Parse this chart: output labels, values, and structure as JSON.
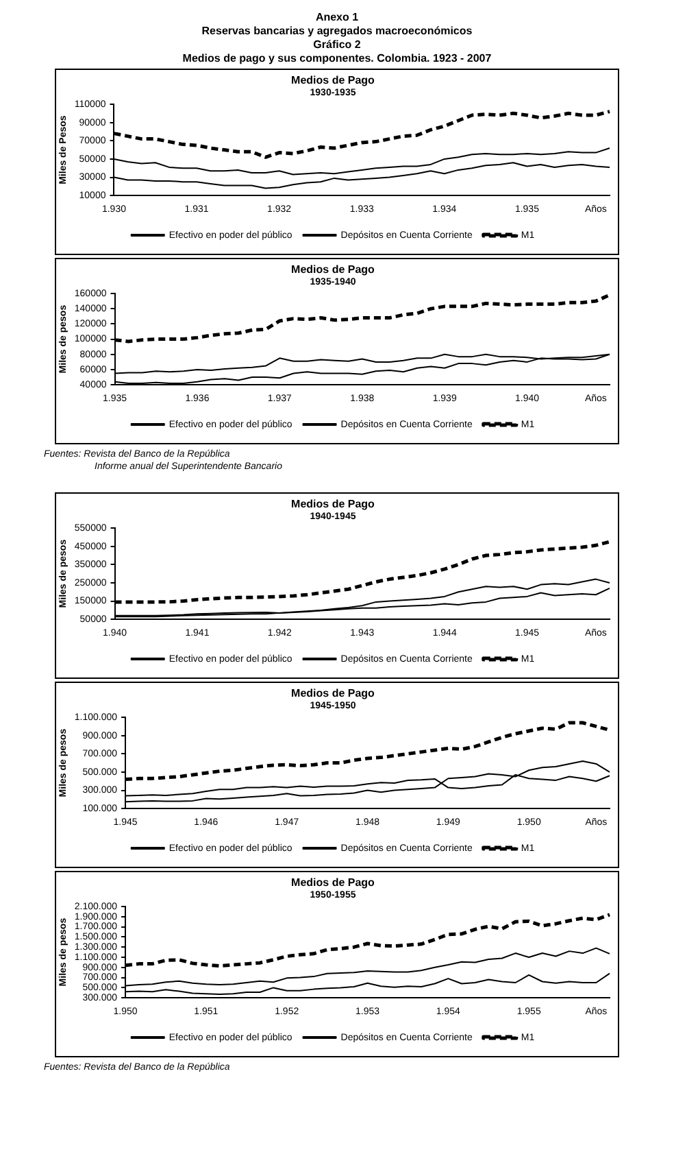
{
  "chart_data": [
    {
      "type": "line",
      "title": "Medios de Pago",
      "subtitle": "1930-1935",
      "ylabel": "Miles de Pesos",
      "legend": "bottom",
      "grid": false,
      "annotations": [
        "Anexo 1",
        "Reservas bancarias y agregados macroeconómicos",
        "Gráfico 2",
        "Medios de pago y sus componentes. Colombia. 1923 - 2007"
      ],
      "categories": [
        "1.930",
        null,
        null,
        null,
        null,
        null,
        "1.931",
        null,
        null,
        null,
        null,
        null,
        "1.932",
        null,
        null,
        null,
        null,
        null,
        "1.933",
        null,
        null,
        null,
        null,
        null,
        "1.934",
        null,
        null,
        null,
        null,
        null,
        "1.935",
        null,
        null,
        null,
        null,
        "Años",
        null
      ],
      "ylim": [
        10000,
        110000
      ],
      "yticks": [
        10000,
        30000,
        50000,
        70000,
        90000,
        110000
      ],
      "series": [
        {
          "name": "Efectivo en poder del público",
          "color": "#000000",
          "values": [
            30000,
            27000,
            27000,
            26000,
            26000,
            25000,
            25000,
            23000,
            21000,
            21000,
            21000,
            18000,
            19000,
            22000,
            24000,
            25000,
            29000,
            27000,
            28000,
            29000,
            30000,
            32000,
            34000,
            37000,
            34000,
            38000,
            40000,
            43000,
            44000,
            46000,
            42000,
            44000,
            41000,
            43000,
            44000,
            42000,
            41000
          ]
        },
        {
          "name": "Depósitos en Cuenta Corriente",
          "color": "#000000",
          "values": [
            50000,
            47000,
            45000,
            46000,
            41000,
            40000,
            40000,
            37000,
            37000,
            38000,
            35000,
            35000,
            37000,
            33000,
            34000,
            35000,
            34000,
            36000,
            38000,
            40000,
            41000,
            42000,
            42000,
            44000,
            50000,
            52000,
            55000,
            56000,
            55000,
            55000,
            56000,
            55000,
            56000,
            58000,
            57000,
            57000,
            62000
          ]
        },
        {
          "name": "M1",
          "color": "#000000",
          "line_style": "dashed",
          "values": [
            78000,
            75000,
            72000,
            72000,
            69000,
            66000,
            65000,
            62000,
            60000,
            58000,
            58000,
            52000,
            57000,
            56000,
            59000,
            63000,
            62000,
            65000,
            68000,
            69000,
            72000,
            75000,
            76000,
            82000,
            86000,
            92000,
            98000,
            99000,
            98000,
            100000,
            98000,
            95000,
            97000,
            100000,
            98000,
            98000,
            102000
          ]
        }
      ]
    },
    {
      "type": "line",
      "title": "Medios de Pago",
      "subtitle": "1935-1940",
      "ylabel": "Miles de pesos",
      "legend": "bottom",
      "grid": false,
      "annotations": [
        "Fuentes:  Revista del Banco de la República",
        "Informe anual del Superintendente Bancario"
      ],
      "categories": [
        "1.935",
        null,
        null,
        null,
        null,
        null,
        "1.936",
        null,
        null,
        null,
        null,
        null,
        "1.937",
        null,
        null,
        null,
        null,
        null,
        "1.938",
        null,
        null,
        null,
        null,
        null,
        "1.939",
        null,
        null,
        null,
        null,
        null,
        "1.940",
        null,
        null,
        null,
        null,
        "Años",
        null
      ],
      "ylim": [
        40000,
        160000
      ],
      "yticks": [
        40000,
        60000,
        80000,
        100000,
        120000,
        140000,
        160000
      ],
      "series": [
        {
          "name": "Efectivo en poder del público",
          "color": "#000000",
          "values": [
            44000,
            42000,
            42000,
            43000,
            42000,
            42000,
            44000,
            47000,
            48000,
            46000,
            50000,
            50000,
            49000,
            55000,
            57000,
            55000,
            55000,
            55000,
            54000,
            58000,
            59000,
            57000,
            62000,
            64000,
            62000,
            68000,
            68000,
            66000,
            70000,
            72000,
            70000,
            75000,
            74000,
            74000,
            73000,
            74000,
            80000
          ]
        },
        {
          "name": "Depósitos en Cuenta Corriente",
          "color": "#000000",
          "values": [
            55000,
            56000,
            56000,
            58000,
            57000,
            58000,
            60000,
            59000,
            61000,
            62000,
            63000,
            65000,
            75000,
            71000,
            71000,
            73000,
            72000,
            71000,
            74000,
            70000,
            70000,
            72000,
            75000,
            75000,
            80000,
            77000,
            77000,
            80000,
            77000,
            77000,
            76000,
            74000,
            75000,
            76000,
            76000,
            78000,
            80000
          ]
        },
        {
          "name": "M1",
          "color": "#000000",
          "line_style": "dashed",
          "values": [
            99000,
            97000,
            99000,
            100000,
            100000,
            100000,
            102000,
            105000,
            107000,
            108000,
            112000,
            113000,
            124000,
            127000,
            126000,
            128000,
            125000,
            126000,
            128000,
            128000,
            128000,
            132000,
            134000,
            140000,
            143000,
            143000,
            143000,
            147000,
            146000,
            145000,
            146000,
            146000,
            146000,
            148000,
            148000,
            150000,
            158000
          ]
        }
      ]
    },
    {
      "type": "line",
      "title": "Medios de Pago",
      "subtitle": "1940-1945",
      "ylabel": "Miles de pesos",
      "legend": "bottom",
      "grid": false,
      "categories": [
        "1.940",
        null,
        null,
        null,
        null,
        null,
        "1.941",
        null,
        null,
        null,
        null,
        null,
        "1.942",
        null,
        null,
        null,
        null,
        null,
        "1.943",
        null,
        null,
        null,
        null,
        null,
        "1.944",
        null,
        null,
        null,
        null,
        null,
        "1.945",
        null,
        null,
        null,
        null,
        "Años",
        null
      ],
      "ylim": [
        50000,
        550000
      ],
      "yticks": [
        50000,
        150000,
        250000,
        350000,
        450000,
        550000
      ],
      "series": [
        {
          "name": "Efectivo en poder del público",
          "color": "#000000",
          "values": [
            65000,
            65000,
            65000,
            65000,
            68000,
            70000,
            72000,
            74000,
            76000,
            78000,
            80000,
            80000,
            85000,
            88000,
            92000,
            98000,
            102000,
            108000,
            112000,
            112000,
            118000,
            122000,
            125000,
            128000,
            135000,
            130000,
            140000,
            145000,
            165000,
            170000,
            175000,
            195000,
            180000,
            185000,
            190000,
            185000,
            220000
          ]
        },
        {
          "name": "Depósitos en Cuenta Corriente",
          "color": "#000000",
          "values": [
            70000,
            70000,
            70000,
            70000,
            72000,
            75000,
            80000,
            82000,
            85000,
            86000,
            87000,
            88000,
            85000,
            90000,
            95000,
            100000,
            108000,
            115000,
            125000,
            145000,
            150000,
            155000,
            160000,
            165000,
            175000,
            200000,
            215000,
            230000,
            225000,
            230000,
            215000,
            240000,
            245000,
            240000,
            255000,
            270000,
            250000
          ]
        },
        {
          "name": "M1",
          "color": "#000000",
          "line_style": "dashed",
          "values": [
            145000,
            145000,
            145000,
            145000,
            146000,
            150000,
            158000,
            163000,
            167000,
            170000,
            170000,
            172000,
            175000,
            178000,
            185000,
            195000,
            205000,
            215000,
            235000,
            255000,
            270000,
            280000,
            290000,
            305000,
            325000,
            350000,
            380000,
            400000,
            405000,
            415000,
            420000,
            430000,
            435000,
            440000,
            445000,
            455000,
            475000
          ]
        }
      ]
    },
    {
      "type": "line",
      "title": "Medios de Pago",
      "subtitle": "1945-1950",
      "ylabel": "Miles de pesos",
      "legend": "bottom",
      "grid": false,
      "categories": [
        "1.945",
        null,
        null,
        null,
        null,
        null,
        "1.946",
        null,
        null,
        null,
        null,
        null,
        "1.947",
        null,
        null,
        null,
        null,
        null,
        "1.948",
        null,
        null,
        null,
        null,
        null,
        "1.949",
        null,
        null,
        null,
        null,
        null,
        "1.950",
        null,
        null,
        null,
        null,
        "Años",
        null
      ],
      "ylim": [
        100000,
        1100000
      ],
      "yticks": [
        {
          "value": 100000,
          "label": "100.000"
        },
        {
          "value": 300000,
          "label": "300.000"
        },
        {
          "value": 500000,
          "label": "500.000"
        },
        {
          "value": 700000,
          "label": "700.000"
        },
        {
          "value": 900000,
          "label": "900.000"
        },
        {
          "value": 1100000,
          "label": "1.100.000"
        }
      ],
      "series": [
        {
          "name": "Efectivo en poder del público",
          "color": "#000000",
          "values": [
            175000,
            180000,
            185000,
            180000,
            180000,
            185000,
            210000,
            205000,
            215000,
            225000,
            235000,
            245000,
            265000,
            240000,
            245000,
            255000,
            260000,
            270000,
            300000,
            280000,
            300000,
            310000,
            320000,
            330000,
            430000,
            440000,
            450000,
            480000,
            470000,
            450000,
            520000,
            550000,
            560000,
            590000,
            620000,
            590000,
            500000
          ]
        },
        {
          "name": "Depósitos en Cuenta Corriente",
          "color": "#000000",
          "values": [
            240000,
            245000,
            250000,
            245000,
            255000,
            265000,
            290000,
            310000,
            310000,
            330000,
            330000,
            340000,
            330000,
            345000,
            335000,
            345000,
            345000,
            350000,
            370000,
            385000,
            380000,
            410000,
            415000,
            425000,
            330000,
            320000,
            330000,
            350000,
            360000,
            470000,
            430000,
            420000,
            410000,
            450000,
            430000,
            400000,
            460000
          ]
        },
        {
          "name": "M1",
          "color": "#000000",
          "line_style": "dashed",
          "values": [
            420000,
            430000,
            430000,
            440000,
            450000,
            470000,
            490000,
            510000,
            520000,
            540000,
            560000,
            575000,
            580000,
            570000,
            580000,
            600000,
            600000,
            630000,
            650000,
            660000,
            680000,
            700000,
            720000,
            740000,
            760000,
            750000,
            780000,
            830000,
            880000,
            920000,
            950000,
            980000,
            970000,
            1040000,
            1040000,
            1000000,
            960000
          ]
        }
      ]
    },
    {
      "type": "line",
      "title": "Medios de Pago",
      "subtitle": "1950-1955",
      "ylabel": "Miles de pesos",
      "legend": "bottom",
      "grid": false,
      "annotations": [
        "Fuentes:  Revista del Banco de la República"
      ],
      "categories": [
        "1.950",
        null,
        null,
        null,
        null,
        null,
        "1.951",
        null,
        null,
        null,
        null,
        null,
        "1.952",
        null,
        null,
        null,
        null,
        null,
        "1.953",
        null,
        null,
        null,
        null,
        null,
        "1.954",
        null,
        null,
        null,
        null,
        null,
        "1.955",
        null,
        null,
        null,
        null,
        "Años",
        null
      ],
      "ylim": [
        300000,
        2100000
      ],
      "yticks": [
        {
          "value": 300000,
          "label": "300.000"
        },
        {
          "value": 500000,
          "label": "500.000"
        },
        {
          "value": 700000,
          "label": "700.000"
        },
        {
          "value": 900000,
          "label": "900.000"
        },
        {
          "value": 1100000,
          "label": "1.100.000"
        },
        {
          "value": 1300000,
          "label": "1.300.000"
        },
        {
          "value": 1500000,
          "label": "1.500.000"
        },
        {
          "value": 1700000,
          "label": "1.700.000"
        },
        {
          "value": 1900000,
          "label": "1.900.000"
        },
        {
          "value": 2100000,
          "label": "2.100.000"
        }
      ],
      "series": [
        {
          "name": "Efectivo en poder del público",
          "color": "#000000",
          "values": [
            420000,
            430000,
            420000,
            460000,
            430000,
            390000,
            380000,
            370000,
            380000,
            410000,
            410000,
            500000,
            440000,
            440000,
            470000,
            490000,
            500000,
            520000,
            590000,
            530000,
            510000,
            530000,
            520000,
            580000,
            680000,
            580000,
            600000,
            660000,
            620000,
            600000,
            750000,
            620000,
            590000,
            620000,
            600000,
            600000,
            780000
          ]
        },
        {
          "name": "Depósitos en Cuenta Corriente",
          "color": "#000000",
          "values": [
            540000,
            560000,
            570000,
            610000,
            630000,
            590000,
            570000,
            560000,
            570000,
            600000,
            630000,
            610000,
            690000,
            700000,
            720000,
            780000,
            790000,
            800000,
            830000,
            820000,
            810000,
            810000,
            840000,
            900000,
            950000,
            1010000,
            1000000,
            1060000,
            1080000,
            1180000,
            1100000,
            1180000,
            1120000,
            1220000,
            1180000,
            1280000,
            1170000
          ]
        },
        {
          "name": "M1",
          "color": "#000000",
          "line_style": "dashed",
          "values": [
            940000,
            970000,
            970000,
            1040000,
            1050000,
            980000,
            950000,
            930000,
            950000,
            970000,
            990000,
            1050000,
            1120000,
            1150000,
            1170000,
            1250000,
            1270000,
            1300000,
            1370000,
            1330000,
            1320000,
            1340000,
            1360000,
            1450000,
            1550000,
            1560000,
            1650000,
            1710000,
            1660000,
            1800000,
            1810000,
            1720000,
            1760000,
            1820000,
            1870000,
            1840000,
            1940000
          ]
        }
      ]
    }
  ]
}
